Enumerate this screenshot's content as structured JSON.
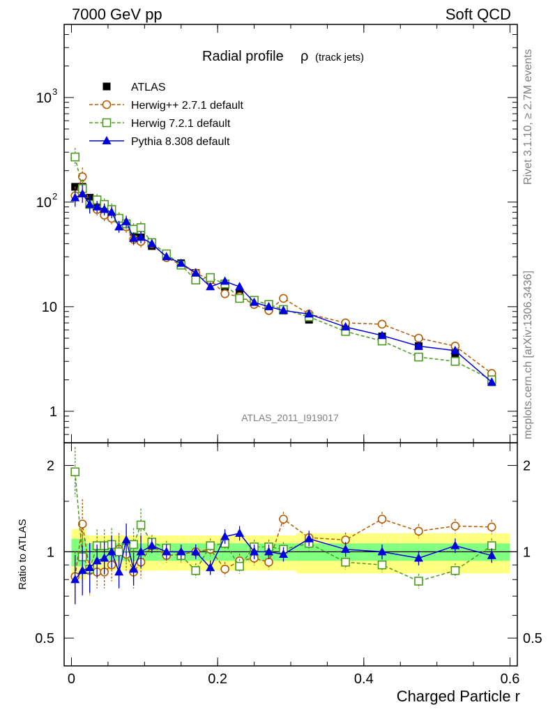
{
  "header": {
    "left": "7000 GeV pp",
    "right": "Soft QCD"
  },
  "side_labels": {
    "top": "Rivet 3.1.10, ≥ 2.7M events",
    "bottom": "mcplots.cern.ch [arXiv:1306.3436]"
  },
  "chart_data": {
    "type": "line",
    "title": "Radial profile",
    "title_symbol": "ρ",
    "title_suffix": "(track jets)",
    "xlabel": "Charged Particle r",
    "ylabel_ratio": "Ratio to ATLAS",
    "analysis_tag": "ATLAS_2011_I919017",
    "main_yscale": "log",
    "main_ylim": [
      0.5,
      5000
    ],
    "main_yticks": [
      "1",
      "10",
      "10",
      "10"
    ],
    "main_ytick_exp": [
      "",
      "",
      "2",
      "3"
    ],
    "ratio_ylim": [
      0.4,
      2.4
    ],
    "ratio_yticks": [
      "0.5",
      "1",
      "2"
    ],
    "xlim": [
      -0.01,
      0.61
    ],
    "xticks": [
      "0",
      "0.2",
      "0.4",
      "0.6"
    ],
    "legend_position": "top-left",
    "x": [
      0.005,
      0.015,
      0.025,
      0.035,
      0.045,
      0.055,
      0.065,
      0.075,
      0.085,
      0.095,
      0.11,
      0.13,
      0.15,
      0.17,
      0.19,
      0.21,
      0.23,
      0.25,
      0.27,
      0.29,
      0.325,
      0.375,
      0.425,
      0.475,
      0.525,
      0.575
    ],
    "series": [
      {
        "name": "ATLAS",
        "style": "data",
        "color": "#000000",
        "values": [
          140,
          140,
          110,
          100,
          90,
          80,
          70,
          60,
          52,
          46,
          38,
          31,
          26,
          21,
          18,
          15.5,
          13.5,
          11,
          10,
          9.2,
          7.5,
          6.3,
          5.2,
          4.2,
          3.6,
          1.9
        ],
        "ratio": [
          1,
          1,
          1,
          1,
          1,
          1,
          1,
          1,
          1,
          1,
          1,
          1,
          1,
          1,
          1,
          1,
          1,
          1,
          1,
          1,
          1,
          1,
          1,
          1,
          1,
          1
        ]
      },
      {
        "name": "Herwig++ 2.7.1 default",
        "style": "open-circle-dashed",
        "color": "#b35900",
        "values": [
          115,
          175,
          95,
          85,
          75,
          70,
          70,
          58,
          44,
          42,
          40,
          29.5,
          25,
          21,
          18,
          13.3,
          12.5,
          10.5,
          9.2,
          12,
          8.5,
          7,
          6.8,
          5,
          4.2,
          2.3
        ],
        "ratio": [
          0.82,
          1.25,
          0.86,
          0.85,
          0.85,
          0.9,
          1.02,
          0.98,
          0.85,
          0.92,
          1.05,
          0.97,
          0.98,
          1.0,
          1.02,
          0.87,
          0.93,
          0.95,
          0.92,
          1.3,
          1.12,
          1.1,
          1.3,
          1.18,
          1.23,
          1.22
        ]
      },
      {
        "name": "Herwig 7.2.1 default",
        "style": "open-square-dashed",
        "color": "#4c9a1e",
        "values": [
          270,
          135,
          95,
          105,
          95,
          85,
          70,
          62,
          55,
          57,
          41,
          32,
          25,
          18,
          19,
          16.5,
          12,
          11.5,
          10.5,
          9.4,
          8,
          5.8,
          4.7,
          3.3,
          3,
          2.0
        ],
        "ratio": [
          1.9,
          0.96,
          0.87,
          1.05,
          1.05,
          1.06,
          1.0,
          1.03,
          1.06,
          1.24,
          1.08,
          1.03,
          0.97,
          0.86,
          1.05,
          1.07,
          0.89,
          1.04,
          1.04,
          1.02,
          1.07,
          0.92,
          0.9,
          0.79,
          0.86,
          1.05
        ]
      },
      {
        "name": "Pythia 8.308 default",
        "style": "filled-triangle-solid",
        "color": "#0000dd",
        "values": [
          110,
          120,
          95,
          90,
          85,
          80,
          58,
          65,
          45,
          46,
          40,
          30,
          26,
          21,
          15.5,
          17.5,
          15.5,
          11,
          10,
          9.2,
          8.5,
          6.4,
          5.3,
          4.2,
          3.8,
          1.9
        ],
        "ratio": [
          0.8,
          0.86,
          0.88,
          0.93,
          0.95,
          1.0,
          0.85,
          1.1,
          0.87,
          1.0,
          1.05,
          1.0,
          1.0,
          1.0,
          0.88,
          1.13,
          1.16,
          1.0,
          1.0,
          0.98,
          1.11,
          1.02,
          1.0,
          0.95,
          1.05,
          0.97
        ]
      }
    ]
  }
}
